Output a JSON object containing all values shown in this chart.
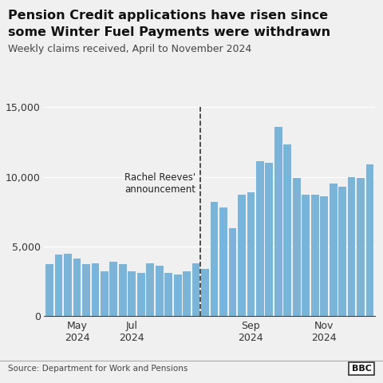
{
  "title_line1": "Pension Credit applications have risen since",
  "title_line2": "some Winter Fuel Payments were withdrawn",
  "subtitle": "Weekly claims received, April to November 2024",
  "source": "Source: Department for Work and Pensions",
  "bar_color": "#7ab5d9",
  "background_color": "#f0f0f0",
  "ylim": [
    0,
    15000
  ],
  "yticks": [
    0,
    5000,
    10000,
    15000
  ],
  "annotation_text": "Rachel Reeves'\nannouncement",
  "dashed_line_index": 17,
  "values": [
    3700,
    4400,
    4500,
    4100,
    3700,
    3800,
    3200,
    3900,
    3700,
    3200,
    3100,
    3800,
    3600,
    3100,
    3000,
    3200,
    3800,
    3400,
    8200,
    7800,
    6300,
    8700,
    8900,
    11100,
    11000,
    13600,
    12300,
    9900,
    8700,
    8700,
    8600,
    9500,
    9300,
    10000,
    9900,
    10900
  ],
  "x_tick_positions": [
    3,
    9,
    22,
    30
  ],
  "x_tick_labels": [
    "May\n2024",
    "Jul\n2024",
    "Sep\n2024",
    "Nov\n2024"
  ]
}
